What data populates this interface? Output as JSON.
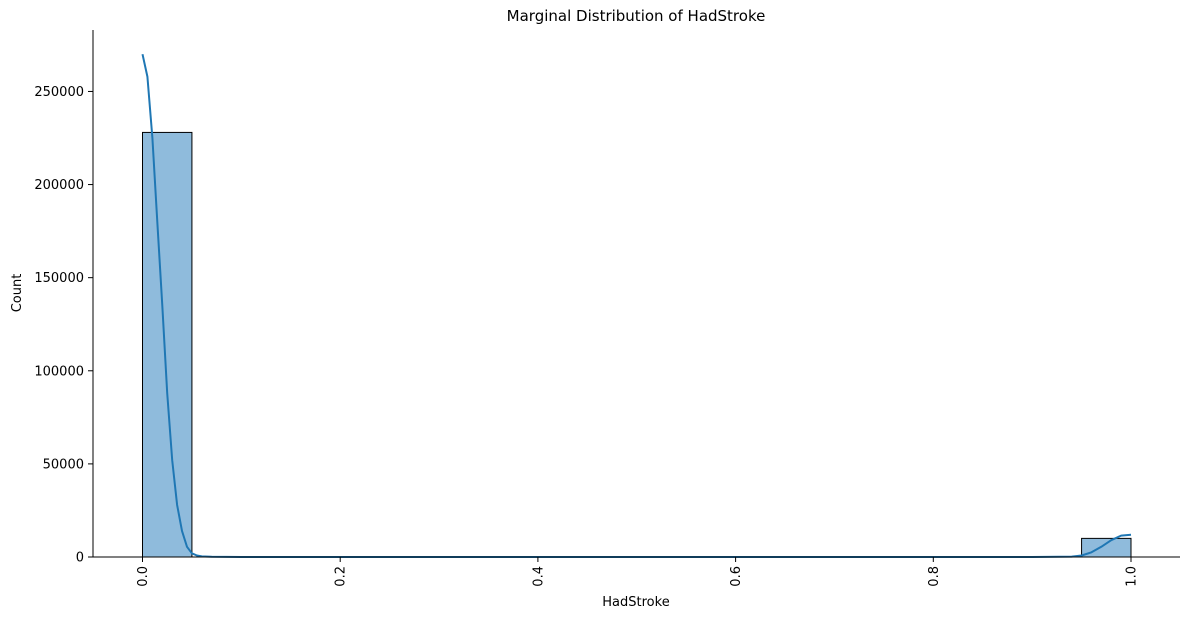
{
  "chart_data": {
    "type": "bar",
    "title": "Marginal Distribution of HadStroke",
    "xlabel": "HadStroke",
    "ylabel": "Count",
    "xlim": [
      -0.05,
      1.0
    ],
    "ylim": [
      0,
      283000
    ],
    "xticks": [
      0.0,
      0.2,
      0.4,
      0.6,
      0.8,
      1.0
    ],
    "xtick_labels": [
      "0.0",
      "0.2",
      "0.4",
      "0.6",
      "0.8",
      "1.0"
    ],
    "yticks": [
      0,
      50000,
      100000,
      150000,
      200000,
      250000
    ],
    "ytick_labels": [
      "0",
      "50000",
      "100000",
      "150000",
      "200000",
      "250000"
    ],
    "bins": [
      {
        "x0": 0.0,
        "x1": 0.05,
        "count": 228000
      },
      {
        "x0": 0.95,
        "x1": 1.0,
        "count": 10000
      }
    ],
    "kde": {
      "x": [
        0.0,
        0.005,
        0.01,
        0.015,
        0.02,
        0.025,
        0.03,
        0.035,
        0.04,
        0.045,
        0.05,
        0.055,
        0.06,
        0.07,
        0.1,
        0.5,
        0.9,
        0.94,
        0.95,
        0.96,
        0.97,
        0.98,
        0.99,
        1.0
      ],
      "y": [
        270000,
        258000,
        225000,
        180000,
        135000,
        88000,
        52000,
        28000,
        14000,
        5500,
        2000,
        800,
        300,
        100,
        0,
        0,
        0,
        200,
        800,
        2500,
        5500,
        9000,
        11500,
        12000
      ]
    },
    "colors": {
      "bar_fill": "#8fbbdc",
      "bar_edge": "#000000",
      "kde_line": "#1f77b4"
    },
    "grid": false,
    "x_tick_rotation": "vertical"
  }
}
